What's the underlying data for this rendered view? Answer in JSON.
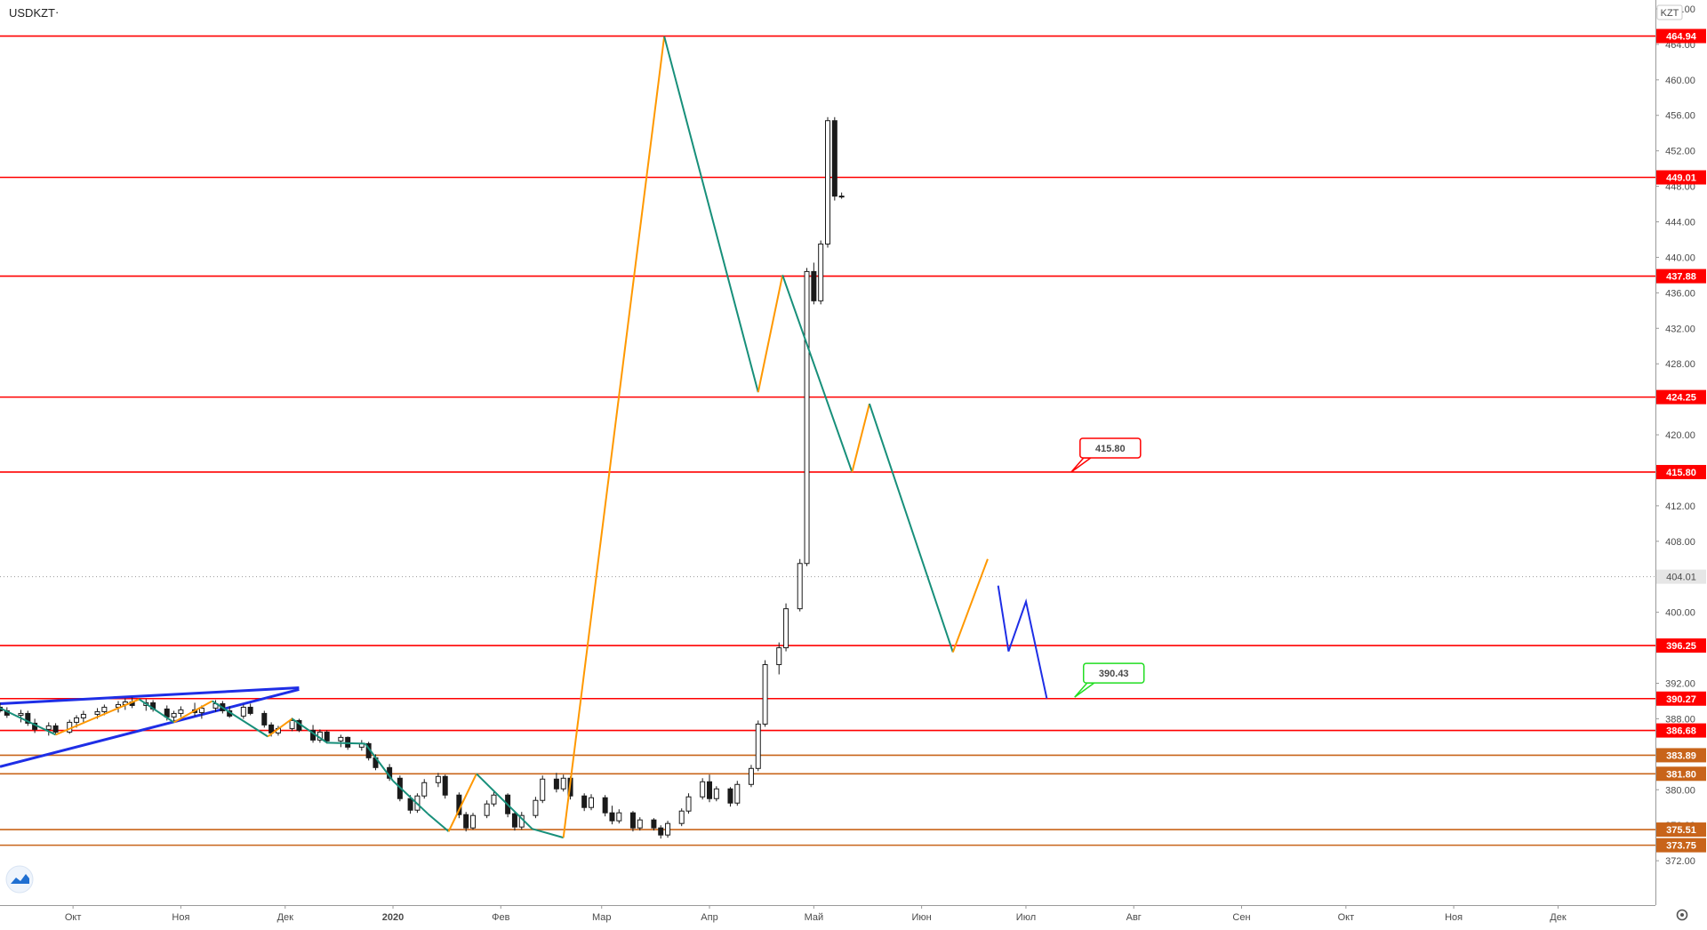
{
  "header": {
    "symbol": "USDKZT",
    "menu_glyph": "·",
    "currency": "KZT"
  },
  "colors": {
    "red_level": "#ff0000",
    "brown_level": "#c8641a",
    "orange_wave": "#ff9800",
    "teal_wave": "#178f7a",
    "blue": "#1e2ee6",
    "green_label": "#22dd22",
    "candle": "#1a1a1a",
    "price_tag_grey": "#888888"
  },
  "chart_data": {
    "type": "candlestick",
    "title": "USDKZT",
    "ylim": [
      367,
      469
    ],
    "y_ticks": [
      372,
      376,
      380,
      384,
      388,
      392,
      396,
      400,
      404,
      408,
      412,
      416,
      420,
      424,
      428,
      432,
      436,
      440,
      444,
      448,
      452,
      456,
      460,
      464,
      468
    ],
    "y_tick_labels": [
      "372.00",
      "376.00",
      "380.00",
      "384.00",
      "388.00",
      "392.00",
      "396.00",
      "400.00",
      "404.00",
      "408.00",
      "412.00",
      "416.00",
      "420.00",
      "424.00",
      "428.00",
      "432.00",
      "436.00",
      "440.00",
      "444.00",
      "448.00",
      "452.00",
      "456.00",
      "460.00",
      "464.00",
      "468.00"
    ],
    "x_range": [
      "2019-09-10",
      "2020-12-29"
    ],
    "x_ticks": [
      {
        "date": "2019-10-01",
        "label": "Окт",
        "bold": false
      },
      {
        "date": "2019-11-01",
        "label": "Ноя",
        "bold": false
      },
      {
        "date": "2019-12-01",
        "label": "Дек",
        "bold": false
      },
      {
        "date": "2020-01-01",
        "label": "2020",
        "bold": true
      },
      {
        "date": "2020-02-01",
        "label": "Фев",
        "bold": false
      },
      {
        "date": "2020-03-01",
        "label": "Мар",
        "bold": false
      },
      {
        "date": "2020-04-01",
        "label": "Апр",
        "bold": false
      },
      {
        "date": "2020-05-01",
        "label": "Май",
        "bold": false
      },
      {
        "date": "2020-06-01",
        "label": "Июн",
        "bold": false
      },
      {
        "date": "2020-07-01",
        "label": "Июл",
        "bold": false
      },
      {
        "date": "2020-08-01",
        "label": "Авг",
        "bold": false
      },
      {
        "date": "2020-09-01",
        "label": "Сен",
        "bold": false
      },
      {
        "date": "2020-10-01",
        "label": "Окт",
        "bold": false
      },
      {
        "date": "2020-11-01",
        "label": "Ноя",
        "bold": false
      },
      {
        "date": "2020-12-01",
        "label": "Дек",
        "bold": false
      }
    ],
    "levels": [
      {
        "value": 464.94,
        "label": "464.94",
        "color": "red"
      },
      {
        "value": 449.01,
        "label": "449.01",
        "color": "red"
      },
      {
        "value": 437.88,
        "label": "437.88",
        "color": "red"
      },
      {
        "value": 424.25,
        "label": "424.25",
        "color": "red"
      },
      {
        "value": 415.8,
        "label": "415.80",
        "color": "red"
      },
      {
        "value": 396.25,
        "label": "396.25",
        "color": "red"
      },
      {
        "value": 390.27,
        "label": "390.27",
        "color": "red"
      },
      {
        "value": 386.68,
        "label": "386.68",
        "color": "red"
      },
      {
        "value": 383.89,
        "label": "383.89",
        "color": "brown"
      },
      {
        "value": 381.8,
        "label": "381.80",
        "color": "brown"
      },
      {
        "value": 375.51,
        "label": "375.51",
        "color": "brown"
      },
      {
        "value": 373.75,
        "label": "373.75",
        "color": "brown"
      }
    ],
    "last_price": {
      "value": 404.01,
      "label": "404.01"
    },
    "callouts": [
      {
        "label": "415.80",
        "value": 415.8,
        "anchor_date": "2020-07-14",
        "color": "red"
      },
      {
        "label": "390.43",
        "value": 390.43,
        "anchor_date": "2020-07-15",
        "color": "green"
      }
    ],
    "wave_points": [
      {
        "date": "2019-09-10",
        "value": 389.2
      },
      {
        "date": "2019-09-26",
        "value": 386.2
      },
      {
        "date": "2019-10-20",
        "value": 390.2
      },
      {
        "date": "2019-10-30",
        "value": 387.6
      },
      {
        "date": "2019-11-10",
        "value": 390.0
      },
      {
        "date": "2019-11-26",
        "value": 386.0
      },
      {
        "date": "2019-12-03",
        "value": 388.0
      },
      {
        "date": "2019-12-13",
        "value": 385.3
      },
      {
        "date": "2019-12-24",
        "value": 385.2
      },
      {
        "date": "2020-01-01",
        "value": 381.0
      },
      {
        "date": "2020-01-11",
        "value": 377.3
      },
      {
        "date": "2020-01-17",
        "value": 375.3
      },
      {
        "date": "2020-01-25",
        "value": 381.8
      },
      {
        "date": "2020-02-10",
        "value": 375.6
      },
      {
        "date": "2020-02-19",
        "value": 374.6
      },
      {
        "date": "2020-03-19",
        "value": 464.9
      },
      {
        "date": "2020-04-15",
        "value": 424.8
      },
      {
        "date": "2020-04-22",
        "value": 438.0
      },
      {
        "date": "2020-05-12",
        "value": 415.8
      },
      {
        "date": "2020-05-17",
        "value": 423.5
      },
      {
        "date": "2020-06-10",
        "value": 395.5
      },
      {
        "date": "2020-06-20",
        "value": 406.0
      }
    ],
    "projection_points": [
      {
        "date": "2020-06-23",
        "value": 403.0
      },
      {
        "date": "2020-06-26",
        "value": 395.6
      },
      {
        "date": "2020-07-01",
        "value": 401.2
      },
      {
        "date": "2020-07-07",
        "value": 390.3
      }
    ],
    "trend_lines": [
      {
        "from": {
          "date": "2019-09-10",
          "value": 389.7
        },
        "to": {
          "date": "2019-12-05",
          "value": 391.5
        }
      },
      {
        "from": {
          "date": "2019-09-10",
          "value": 382.6
        },
        "to": {
          "date": "2019-12-05",
          "value": 391.3
        }
      }
    ],
    "candles": [
      {
        "date": "2019-09-10",
        "o": 389.3,
        "h": 389.8,
        "l": 388.7,
        "c": 388.9
      },
      {
        "date": "2019-09-12",
        "o": 388.9,
        "h": 389.3,
        "l": 388.1,
        "c": 388.4
      },
      {
        "date": "2019-09-16",
        "o": 388.4,
        "h": 389.0,
        "l": 387.6,
        "c": 388.6
      },
      {
        "date": "2019-09-18",
        "o": 388.6,
        "h": 388.9,
        "l": 387.2,
        "c": 387.5
      },
      {
        "date": "2019-09-20",
        "o": 387.5,
        "h": 388.0,
        "l": 386.4,
        "c": 386.8
      },
      {
        "date": "2019-09-24",
        "o": 386.8,
        "h": 387.6,
        "l": 386.1,
        "c": 387.2
      },
      {
        "date": "2019-09-26",
        "o": 387.2,
        "h": 387.5,
        "l": 386.2,
        "c": 386.5
      },
      {
        "date": "2019-09-30",
        "o": 386.5,
        "h": 387.9,
        "l": 386.3,
        "c": 387.6
      },
      {
        "date": "2019-10-02",
        "o": 387.6,
        "h": 388.4,
        "l": 387.0,
        "c": 388.1
      },
      {
        "date": "2019-10-04",
        "o": 388.1,
        "h": 388.9,
        "l": 387.6,
        "c": 388.5
      },
      {
        "date": "2019-10-08",
        "o": 388.5,
        "h": 389.2,
        "l": 388.0,
        "c": 388.8
      },
      {
        "date": "2019-10-10",
        "o": 388.8,
        "h": 389.6,
        "l": 388.4,
        "c": 389.3
      },
      {
        "date": "2019-10-14",
        "o": 389.3,
        "h": 390.0,
        "l": 388.7,
        "c": 389.6
      },
      {
        "date": "2019-10-16",
        "o": 389.6,
        "h": 390.3,
        "l": 389.0,
        "c": 389.9
      },
      {
        "date": "2019-10-18",
        "o": 389.9,
        "h": 390.4,
        "l": 389.2,
        "c": 389.5
      },
      {
        "date": "2019-10-22",
        "o": 389.5,
        "h": 390.2,
        "l": 388.9,
        "c": 389.8
      },
      {
        "date": "2019-10-24",
        "o": 389.8,
        "h": 390.1,
        "l": 388.8,
        "c": 389.1
      },
      {
        "date": "2019-10-28",
        "o": 389.1,
        "h": 389.5,
        "l": 387.8,
        "c": 388.2
      },
      {
        "date": "2019-10-30",
        "o": 388.2,
        "h": 388.9,
        "l": 387.6,
        "c": 388.6
      },
      {
        "date": "2019-11-01",
        "o": 388.6,
        "h": 389.4,
        "l": 388.2,
        "c": 389.0
      },
      {
        "date": "2019-11-05",
        "o": 389.0,
        "h": 389.8,
        "l": 388.3,
        "c": 388.7
      },
      {
        "date": "2019-11-07",
        "o": 388.7,
        "h": 389.5,
        "l": 388.0,
        "c": 389.2
      },
      {
        "date": "2019-11-11",
        "o": 389.2,
        "h": 390.1,
        "l": 388.8,
        "c": 389.7
      },
      {
        "date": "2019-11-13",
        "o": 389.7,
        "h": 390.0,
        "l": 388.6,
        "c": 388.9
      },
      {
        "date": "2019-11-15",
        "o": 388.9,
        "h": 389.4,
        "l": 388.1,
        "c": 388.3
      },
      {
        "date": "2019-11-19",
        "o": 388.3,
        "h": 389.6,
        "l": 388.0,
        "c": 389.3
      },
      {
        "date": "2019-11-21",
        "o": 389.3,
        "h": 389.7,
        "l": 388.4,
        "c": 388.6
      },
      {
        "date": "2019-11-25",
        "o": 388.6,
        "h": 388.9,
        "l": 387.0,
        "c": 387.3
      },
      {
        "date": "2019-11-27",
        "o": 387.3,
        "h": 387.6,
        "l": 386.0,
        "c": 386.4
      },
      {
        "date": "2019-11-29",
        "o": 386.4,
        "h": 387.2,
        "l": 386.1,
        "c": 386.9
      },
      {
        "date": "2019-12-03",
        "o": 386.9,
        "h": 388.1,
        "l": 386.6,
        "c": 387.8
      },
      {
        "date": "2019-12-05",
        "o": 387.8,
        "h": 388.0,
        "l": 386.5,
        "c": 386.7
      },
      {
        "date": "2019-12-09",
        "o": 386.7,
        "h": 387.3,
        "l": 385.3,
        "c": 385.6
      },
      {
        "date": "2019-12-11",
        "o": 385.6,
        "h": 386.8,
        "l": 385.3,
        "c": 386.5
      },
      {
        "date": "2019-12-13",
        "o": 386.5,
        "h": 386.7,
        "l": 385.2,
        "c": 385.5
      },
      {
        "date": "2019-12-17",
        "o": 385.5,
        "h": 386.2,
        "l": 384.8,
        "c": 385.9
      },
      {
        "date": "2019-12-19",
        "o": 385.9,
        "h": 386.0,
        "l": 384.5,
        "c": 384.8
      },
      {
        "date": "2019-12-23",
        "o": 384.8,
        "h": 385.6,
        "l": 384.4,
        "c": 385.2
      },
      {
        "date": "2019-12-25",
        "o": 385.2,
        "h": 385.4,
        "l": 383.3,
        "c": 383.6
      },
      {
        "date": "2019-12-27",
        "o": 383.6,
        "h": 384.0,
        "l": 382.2,
        "c": 382.5
      },
      {
        "date": "2019-12-31",
        "o": 382.5,
        "h": 382.9,
        "l": 381.0,
        "c": 381.3
      },
      {
        "date": "2020-01-03",
        "o": 381.3,
        "h": 381.6,
        "l": 378.7,
        "c": 379.0
      },
      {
        "date": "2020-01-06",
        "o": 379.0,
        "h": 379.4,
        "l": 377.3,
        "c": 377.7
      },
      {
        "date": "2020-01-08",
        "o": 377.7,
        "h": 379.6,
        "l": 377.4,
        "c": 379.3
      },
      {
        "date": "2020-01-10",
        "o": 379.3,
        "h": 381.2,
        "l": 379.0,
        "c": 380.8
      },
      {
        "date": "2020-01-14",
        "o": 380.8,
        "h": 381.9,
        "l": 380.3,
        "c": 381.5
      },
      {
        "date": "2020-01-16",
        "o": 381.5,
        "h": 381.7,
        "l": 379.0,
        "c": 379.4
      },
      {
        "date": "2020-01-20",
        "o": 379.4,
        "h": 379.7,
        "l": 376.8,
        "c": 377.2
      },
      {
        "date": "2020-01-22",
        "o": 377.2,
        "h": 377.5,
        "l": 375.3,
        "c": 375.7
      },
      {
        "date": "2020-01-24",
        "o": 375.7,
        "h": 377.4,
        "l": 375.5,
        "c": 377.1
      },
      {
        "date": "2020-01-28",
        "o": 377.1,
        "h": 378.8,
        "l": 376.8,
        "c": 378.4
      },
      {
        "date": "2020-01-30",
        "o": 378.4,
        "h": 379.8,
        "l": 378.1,
        "c": 379.4
      },
      {
        "date": "2020-02-03",
        "o": 379.4,
        "h": 379.6,
        "l": 376.9,
        "c": 377.3
      },
      {
        "date": "2020-02-05",
        "o": 377.3,
        "h": 377.6,
        "l": 375.4,
        "c": 375.8
      },
      {
        "date": "2020-02-07",
        "o": 375.8,
        "h": 377.5,
        "l": 375.5,
        "c": 377.1
      },
      {
        "date": "2020-02-11",
        "o": 377.1,
        "h": 379.2,
        "l": 376.8,
        "c": 378.8
      },
      {
        "date": "2020-02-13",
        "o": 378.8,
        "h": 381.6,
        "l": 378.5,
        "c": 381.2
      },
      {
        "date": "2020-02-17",
        "o": 381.2,
        "h": 381.9,
        "l": 379.7,
        "c": 380.1
      },
      {
        "date": "2020-02-19",
        "o": 380.1,
        "h": 381.7,
        "l": 379.8,
        "c": 381.3
      },
      {
        "date": "2020-02-21",
        "o": 381.3,
        "h": 381.5,
        "l": 378.9,
        "c": 379.3
      },
      {
        "date": "2020-02-25",
        "o": 379.3,
        "h": 379.6,
        "l": 377.6,
        "c": 378.0
      },
      {
        "date": "2020-02-27",
        "o": 378.0,
        "h": 379.5,
        "l": 377.7,
        "c": 379.1
      },
      {
        "date": "2020-03-02",
        "o": 379.1,
        "h": 379.4,
        "l": 377.0,
        "c": 377.4
      },
      {
        "date": "2020-03-04",
        "o": 377.4,
        "h": 378.2,
        "l": 376.1,
        "c": 376.5
      },
      {
        "date": "2020-03-06",
        "o": 376.5,
        "h": 377.8,
        "l": 376.2,
        "c": 377.4
      },
      {
        "date": "2020-03-10",
        "o": 377.4,
        "h": 377.6,
        "l": 375.3,
        "c": 375.7
      },
      {
        "date": "2020-03-12",
        "o": 375.7,
        "h": 376.9,
        "l": 375.4,
        "c": 376.6
      },
      {
        "date": "2020-03-16",
        "o": 376.6,
        "h": 376.8,
        "l": 375.4,
        "c": 375.7
      },
      {
        "date": "2020-03-18",
        "o": 375.7,
        "h": 376.0,
        "l": 374.5,
        "c": 374.9
      },
      {
        "date": "2020-03-20",
        "o": 374.9,
        "h": 376.5,
        "l": 374.6,
        "c": 376.2
      },
      {
        "date": "2020-03-24",
        "o": 376.2,
        "h": 377.9,
        "l": 375.9,
        "c": 377.6
      },
      {
        "date": "2020-03-26",
        "o": 377.6,
        "h": 379.6,
        "l": 377.3,
        "c": 379.2
      },
      {
        "date": "2020-03-30",
        "o": 379.2,
        "h": 381.3,
        "l": 378.9,
        "c": 380.9
      },
      {
        "date": "2020-04-01",
        "o": 380.9,
        "h": 381.7,
        "l": 378.6,
        "c": 379.0
      },
      {
        "date": "2020-04-03",
        "o": 379.0,
        "h": 380.4,
        "l": 378.7,
        "c": 380.1
      },
      {
        "date": "2020-04-07",
        "o": 380.1,
        "h": 380.3,
        "l": 378.1,
        "c": 378.5
      },
      {
        "date": "2020-04-09",
        "o": 378.5,
        "h": 381.0,
        "l": 378.2,
        "c": 380.6
      },
      {
        "date": "2020-04-13",
        "o": 380.6,
        "h": 382.8,
        "l": 380.3,
        "c": 382.4
      },
      {
        "date": "2020-04-15",
        "o": 382.4,
        "h": 387.8,
        "l": 382.1,
        "c": 387.4
      },
      {
        "date": "2020-04-17",
        "o": 387.4,
        "h": 394.6,
        "l": 387.1,
        "c": 394.1
      },
      {
        "date": "2020-04-21",
        "o": 394.1,
        "h": 396.6,
        "l": 393.0,
        "c": 396.0
      },
      {
        "date": "2020-04-23",
        "o": 396.0,
        "h": 401.0,
        "l": 395.6,
        "c": 400.4
      },
      {
        "date": "2020-04-27",
        "o": 400.4,
        "h": 406.0,
        "l": 400.1,
        "c": 405.5
      },
      {
        "date": "2020-04-29",
        "o": 405.5,
        "h": 438.8,
        "l": 405.2,
        "c": 438.4
      },
      {
        "date": "2020-05-01",
        "o": 438.4,
        "h": 439.4,
        "l": 434.7,
        "c": 435.1
      },
      {
        "date": "2020-05-03",
        "o": 435.1,
        "h": 441.9,
        "l": 434.7,
        "c": 441.5
      },
      {
        "date": "2020-05-05",
        "o": 441.5,
        "h": 455.8,
        "l": 441.1,
        "c": 455.4
      },
      {
        "date": "2020-05-07",
        "o": 455.4,
        "h": 455.8,
        "l": 446.4,
        "c": 446.9
      },
      {
        "date": "2020-05-09",
        "o": 446.9,
        "h": 447.3,
        "l": 446.6,
        "c": 446.9
      }
    ]
  }
}
